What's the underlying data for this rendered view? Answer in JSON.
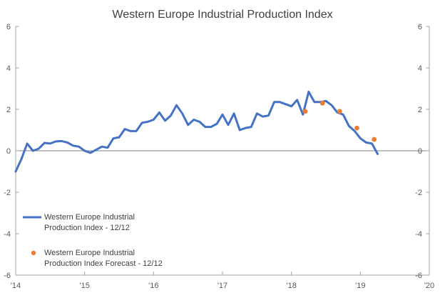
{
  "chart_data": {
    "type": "line",
    "title": "Western Europe Industrial Production Index",
    "xlabel": "",
    "ylabel": "",
    "xlim": [
      2014.0,
      2020.0
    ],
    "ylim": [
      -6,
      6
    ],
    "y_ticks": [
      -6,
      -4,
      -2,
      0,
      2,
      4,
      6
    ],
    "y_tick_labels": [
      "-6",
      "-4",
      "-2",
      "0",
      "2",
      "4",
      "6"
    ],
    "y_right_tick_labels": [
      "-6",
      "-4",
      "-2",
      "0",
      "2",
      "4",
      "6"
    ],
    "x_ticks": [
      2014,
      2015,
      2016,
      2017,
      2018,
      2019,
      2020
    ],
    "x_tick_labels": [
      "'14",
      "'15",
      "'16",
      "'17",
      "'18",
      "'19",
      "'20"
    ],
    "grid": false,
    "legend_position": "bottom-left",
    "series": [
      {
        "name": "Western Europe Industrial Production Index - 12/12",
        "kind": "line",
        "color": "#4472C4",
        "x": [
          2014.0,
          2014.083,
          2014.167,
          2014.25,
          2014.333,
          2014.417,
          2014.5,
          2014.583,
          2014.667,
          2014.75,
          2014.833,
          2014.917,
          2015.0,
          2015.083,
          2015.167,
          2015.25,
          2015.333,
          2015.417,
          2015.5,
          2015.583,
          2015.667,
          2015.75,
          2015.833,
          2015.917,
          2016.0,
          2016.083,
          2016.167,
          2016.25,
          2016.333,
          2016.417,
          2016.5,
          2016.583,
          2016.667,
          2016.75,
          2016.833,
          2016.917,
          2017.0,
          2017.083,
          2017.167,
          2017.25,
          2017.333,
          2017.417,
          2017.5,
          2017.583,
          2017.667,
          2017.75,
          2017.833,
          2017.917,
          2018.0,
          2018.083,
          2018.167,
          2018.25,
          2018.333,
          2018.417,
          2018.5,
          2018.583,
          2018.667,
          2018.75,
          2018.833,
          2018.917,
          2019.0,
          2019.083,
          2019.167,
          2019.25
        ],
        "values": [
          -1.0,
          -0.4,
          0.35,
          0.0,
          0.1,
          0.38,
          0.35,
          0.45,
          0.47,
          0.4,
          0.25,
          0.2,
          0.0,
          -0.1,
          0.05,
          0.2,
          0.15,
          0.6,
          0.65,
          1.05,
          0.95,
          0.95,
          1.35,
          1.4,
          1.5,
          1.85,
          1.45,
          1.7,
          2.2,
          1.8,
          1.25,
          1.5,
          1.4,
          1.15,
          1.15,
          1.3,
          1.75,
          1.25,
          1.8,
          1.0,
          1.1,
          1.15,
          1.8,
          1.65,
          1.7,
          2.35,
          2.35,
          2.25,
          2.15,
          2.45,
          1.75,
          2.85,
          2.35,
          2.35,
          2.4,
          2.2,
          1.85,
          1.75,
          1.2,
          0.95,
          0.6,
          0.4,
          0.35,
          -0.15
        ]
      },
      {
        "name": "Western Europe Industrial Production Index Forecast - 12/12",
        "kind": "scatter",
        "color": "#ED7D31",
        "x": [
          2018.2,
          2018.45,
          2018.7,
          2018.95,
          2019.2
        ],
        "values": [
          1.9,
          2.3,
          1.9,
          1.1,
          0.55
        ]
      }
    ],
    "legend": [
      {
        "line1": "Western Europe Industrial",
        "line2": "Production Index - 12/12"
      },
      {
        "line1": "Western Europe Industrial",
        "line2": "Production Index Forecast - 12/12"
      }
    ]
  }
}
